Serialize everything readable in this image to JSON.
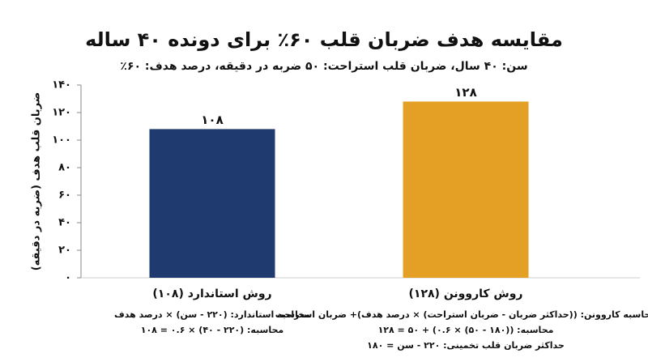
{
  "chart_data": {
    "type": "bar",
    "title": "مقایسه هدف ضربان قلب ۶۰٪ برای دونده ۴۰ ساله",
    "subtitle": "سن: ۴۰ سال،   ضربان قلب استراحت: ۵۰ ضربه در دقیقه،   درصد هدف: ۶۰٪",
    "y_label": "ضربان قلب هدف (ضربه در دقیقه)",
    "categories": [
      "روش استاندارد (۱۰۸)",
      "روش کاروونن (۱۲۸)"
    ],
    "values": [
      108,
      128
    ],
    "value_labels": [
      "۱۰۸",
      "۱۲۸"
    ],
    "colors": [
      "#1f3a6e",
      "#e4a024"
    ],
    "notes": [
      [
        "محاسبه استاندارد: (۲۲۰ - سن) × درصد هدف",
        "محاسبه: (۲۲۰ - ۴۰) × ۰.۶ = ۱۰۸"
      ],
      [
        "محاسبه کاروونن: ((حداکثر ضربان - ضربان استراحت) × درصد هدف)+ ضربان استراحت",
        "محاسبه: ((۱۸۰ - ۵۰) × ۰.۶) + ۵۰ = ۱۲۸",
        "حداکثر ضربان قلب تخمینی: ۲۲۰ - سن = ۱۸۰"
      ]
    ],
    "ylim": [
      0,
      140
    ],
    "yticks": [
      {
        "value": 0,
        "label": "۰"
      },
      {
        "value": 20,
        "label": "۲۰"
      },
      {
        "value": 40,
        "label": "۴۰"
      },
      {
        "value": 60,
        "label": "۶۰"
      },
      {
        "value": 80,
        "label": "۸۰"
      },
      {
        "value": 100,
        "label": "۱۰۰"
      },
      {
        "value": 120,
        "label": "۱۲۰"
      },
      {
        "value": 140,
        "label": "۱۴۰"
      }
    ],
    "grid": false
  }
}
